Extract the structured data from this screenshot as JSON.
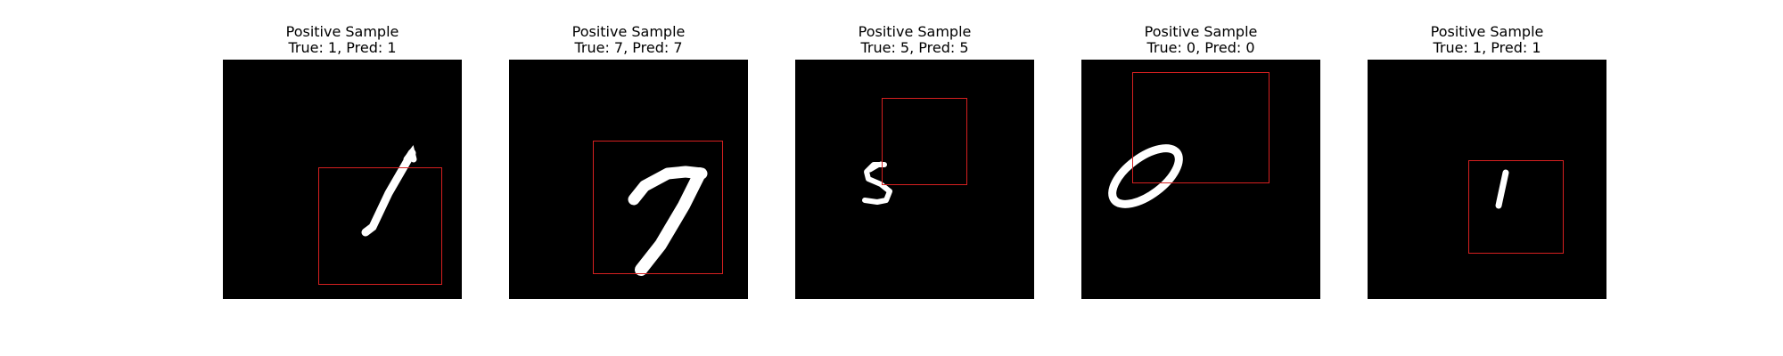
{
  "samples": [
    {
      "label": "Positive Sample",
      "detail": "True: 1, Pred: 1",
      "true_label": 1,
      "pred_label": 1
    },
    {
      "label": "Positive Sample",
      "detail": "True: 7, Pred: 7",
      "true_label": 7,
      "pred_label": 7
    },
    {
      "label": "Positive Sample",
      "detail": "True: 5, Pred: 5",
      "true_label": 5,
      "pred_label": 5
    },
    {
      "label": "Positive Sample",
      "detail": "True: 0, Pred: 0",
      "true_label": 0,
      "pred_label": 0
    },
    {
      "label": "Positive Sample",
      "detail": "True: 1, Pred: 1",
      "true_label": 1,
      "pred_label": 1
    }
  ],
  "colors": {
    "image_background": "#000000",
    "digit_stroke": "#ffffff",
    "bbox_stroke": "#d62020",
    "title_text": "#000000"
  }
}
